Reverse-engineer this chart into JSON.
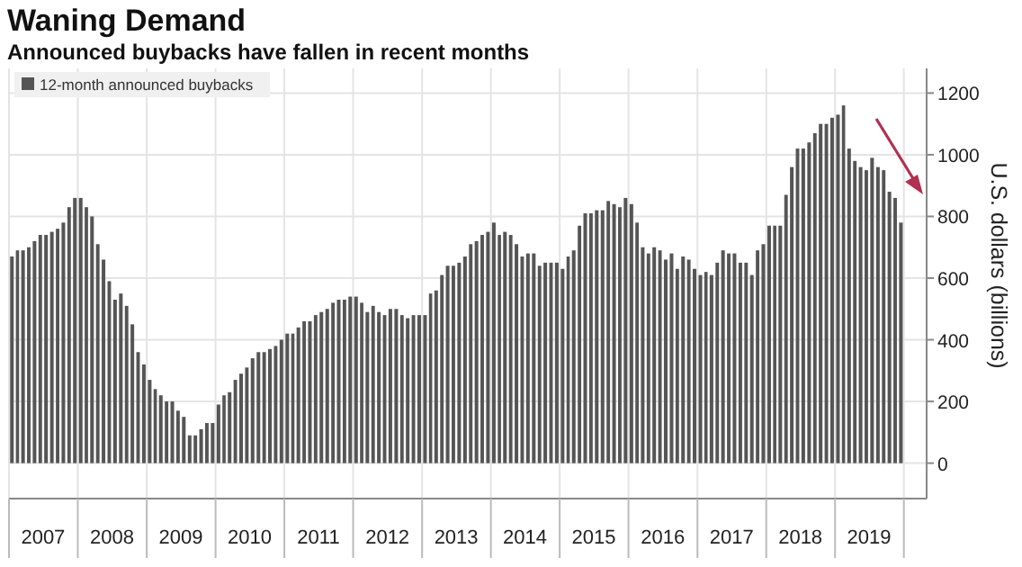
{
  "chart_data": {
    "type": "bar",
    "title": "Waning Demand",
    "subtitle": "Announced buybacks have fallen in recent months",
    "ylabel": "U.S. dollars (billions)",
    "x": [
      "2007-01",
      "2007-02",
      "2007-03",
      "2007-04",
      "2007-05",
      "2007-06",
      "2007-07",
      "2007-08",
      "2007-09",
      "2007-10",
      "2007-11",
      "2007-12",
      "2008-01",
      "2008-02",
      "2008-03",
      "2008-04",
      "2008-05",
      "2008-06",
      "2008-07",
      "2008-08",
      "2008-09",
      "2008-10",
      "2008-11",
      "2008-12",
      "2009-01",
      "2009-02",
      "2009-03",
      "2009-04",
      "2009-05",
      "2009-06",
      "2009-07",
      "2009-08",
      "2009-09",
      "2009-10",
      "2009-11",
      "2009-12",
      "2010-01",
      "2010-02",
      "2010-03",
      "2010-04",
      "2010-05",
      "2010-06",
      "2010-07",
      "2010-08",
      "2010-09",
      "2010-10",
      "2010-11",
      "2010-12",
      "2011-01",
      "2011-02",
      "2011-03",
      "2011-04",
      "2011-05",
      "2011-06",
      "2011-07",
      "2011-08",
      "2011-09",
      "2011-10",
      "2011-11",
      "2011-12",
      "2012-01",
      "2012-02",
      "2012-03",
      "2012-04",
      "2012-05",
      "2012-06",
      "2012-07",
      "2012-08",
      "2012-09",
      "2012-10",
      "2012-11",
      "2012-12",
      "2013-01",
      "2013-02",
      "2013-03",
      "2013-04",
      "2013-05",
      "2013-06",
      "2013-07",
      "2013-08",
      "2013-09",
      "2013-10",
      "2013-11",
      "2013-12",
      "2014-01",
      "2014-02",
      "2014-03",
      "2014-04",
      "2014-05",
      "2014-06",
      "2014-07",
      "2014-08",
      "2014-09",
      "2014-10",
      "2014-11",
      "2014-12",
      "2015-01",
      "2015-02",
      "2015-03",
      "2015-04",
      "2015-05",
      "2015-06",
      "2015-07",
      "2015-08",
      "2015-09",
      "2015-10",
      "2015-11",
      "2015-12",
      "2016-01",
      "2016-02",
      "2016-03",
      "2016-04",
      "2016-05",
      "2016-06",
      "2016-07",
      "2016-08",
      "2016-09",
      "2016-10",
      "2016-11",
      "2016-12",
      "2017-01",
      "2017-02",
      "2017-03",
      "2017-04",
      "2017-05",
      "2017-06",
      "2017-07",
      "2017-08",
      "2017-09",
      "2017-10",
      "2017-11",
      "2017-12",
      "2018-01",
      "2018-02",
      "2018-03",
      "2018-04",
      "2018-05",
      "2018-06",
      "2018-07",
      "2018-08",
      "2018-09",
      "2018-10",
      "2018-11",
      "2018-12",
      "2019-01",
      "2019-02",
      "2019-03",
      "2019-04",
      "2019-05",
      "2019-06",
      "2019-07",
      "2019-08",
      "2019-09",
      "2019-10",
      "2019-11",
      "2019-12"
    ],
    "series": [
      {
        "name": "12-month announced buybacks",
        "color": "#555555",
        "values": [
          670,
          690,
          690,
          700,
          720,
          740,
          740,
          750,
          760,
          780,
          830,
          860,
          860,
          830,
          800,
          710,
          660,
          590,
          530,
          550,
          510,
          450,
          360,
          320,
          270,
          240,
          220,
          200,
          200,
          170,
          150,
          90,
          90,
          110,
          130,
          130,
          190,
          220,
          230,
          270,
          290,
          310,
          340,
          360,
          360,
          370,
          380,
          400,
          420,
          420,
          440,
          460,
          460,
          480,
          490,
          500,
          520,
          530,
          530,
          540,
          540,
          520,
          490,
          510,
          490,
          480,
          500,
          500,
          480,
          470,
          480,
          480,
          480,
          550,
          560,
          610,
          640,
          640,
          650,
          670,
          710,
          720,
          740,
          750,
          780,
          740,
          750,
          740,
          710,
          670,
          680,
          680,
          640,
          650,
          650,
          650,
          630,
          670,
          690,
          770,
          810,
          810,
          820,
          820,
          850,
          840,
          830,
          860,
          840,
          780,
          700,
          680,
          700,
          690,
          660,
          680,
          630,
          670,
          660,
          630,
          610,
          620,
          610,
          650,
          690,
          680,
          680,
          650,
          650,
          610,
          690,
          710,
          770,
          770,
          770,
          870,
          960,
          1020,
          1020,
          1040,
          1070,
          1100,
          1100,
          1120,
          1130,
          1160,
          1020,
          980,
          960,
          950,
          990,
          960,
          950,
          880,
          860,
          780
        ]
      }
    ],
    "xlim": [
      "2007-01",
      "2020-05"
    ],
    "xticks": [
      {
        "value": "2007-01",
        "label": null
      },
      {
        "value": "2007-07",
        "label": "2007"
      },
      {
        "value": "2008-01",
        "label": null
      },
      {
        "value": "2008-07",
        "label": "2008"
      },
      {
        "value": "2009-01",
        "label": null
      },
      {
        "value": "2009-07",
        "label": "2009"
      },
      {
        "value": "2010-01",
        "label": null
      },
      {
        "value": "2010-07",
        "label": "2010"
      },
      {
        "value": "2011-01",
        "label": null
      },
      {
        "value": "2011-07",
        "label": "2011"
      },
      {
        "value": "2012-01",
        "label": null
      },
      {
        "value": "2012-07",
        "label": "2012"
      },
      {
        "value": "2013-01",
        "label": null
      },
      {
        "value": "2013-07",
        "label": "2013"
      },
      {
        "value": "2014-01",
        "label": null
      },
      {
        "value": "2014-07",
        "label": "2014"
      },
      {
        "value": "2015-01",
        "label": null
      },
      {
        "value": "2015-07",
        "label": "2015"
      },
      {
        "value": "2016-01",
        "label": null
      },
      {
        "value": "2016-07",
        "label": "2016"
      },
      {
        "value": "2017-01",
        "label": null
      },
      {
        "value": "2017-07",
        "label": "2017"
      },
      {
        "value": "2018-01",
        "label": null
      },
      {
        "value": "2018-07",
        "label": "2018"
      },
      {
        "value": "2019-01",
        "label": null
      },
      {
        "value": "2019-07",
        "label": "2019"
      },
      {
        "value": "2020-01",
        "label": null
      }
    ],
    "ylim": [
      -115,
      1280
    ],
    "yticks": [
      0,
      200,
      400,
      600,
      800,
      1000,
      1200
    ],
    "grid": true,
    "legend": "top left"
  }
}
